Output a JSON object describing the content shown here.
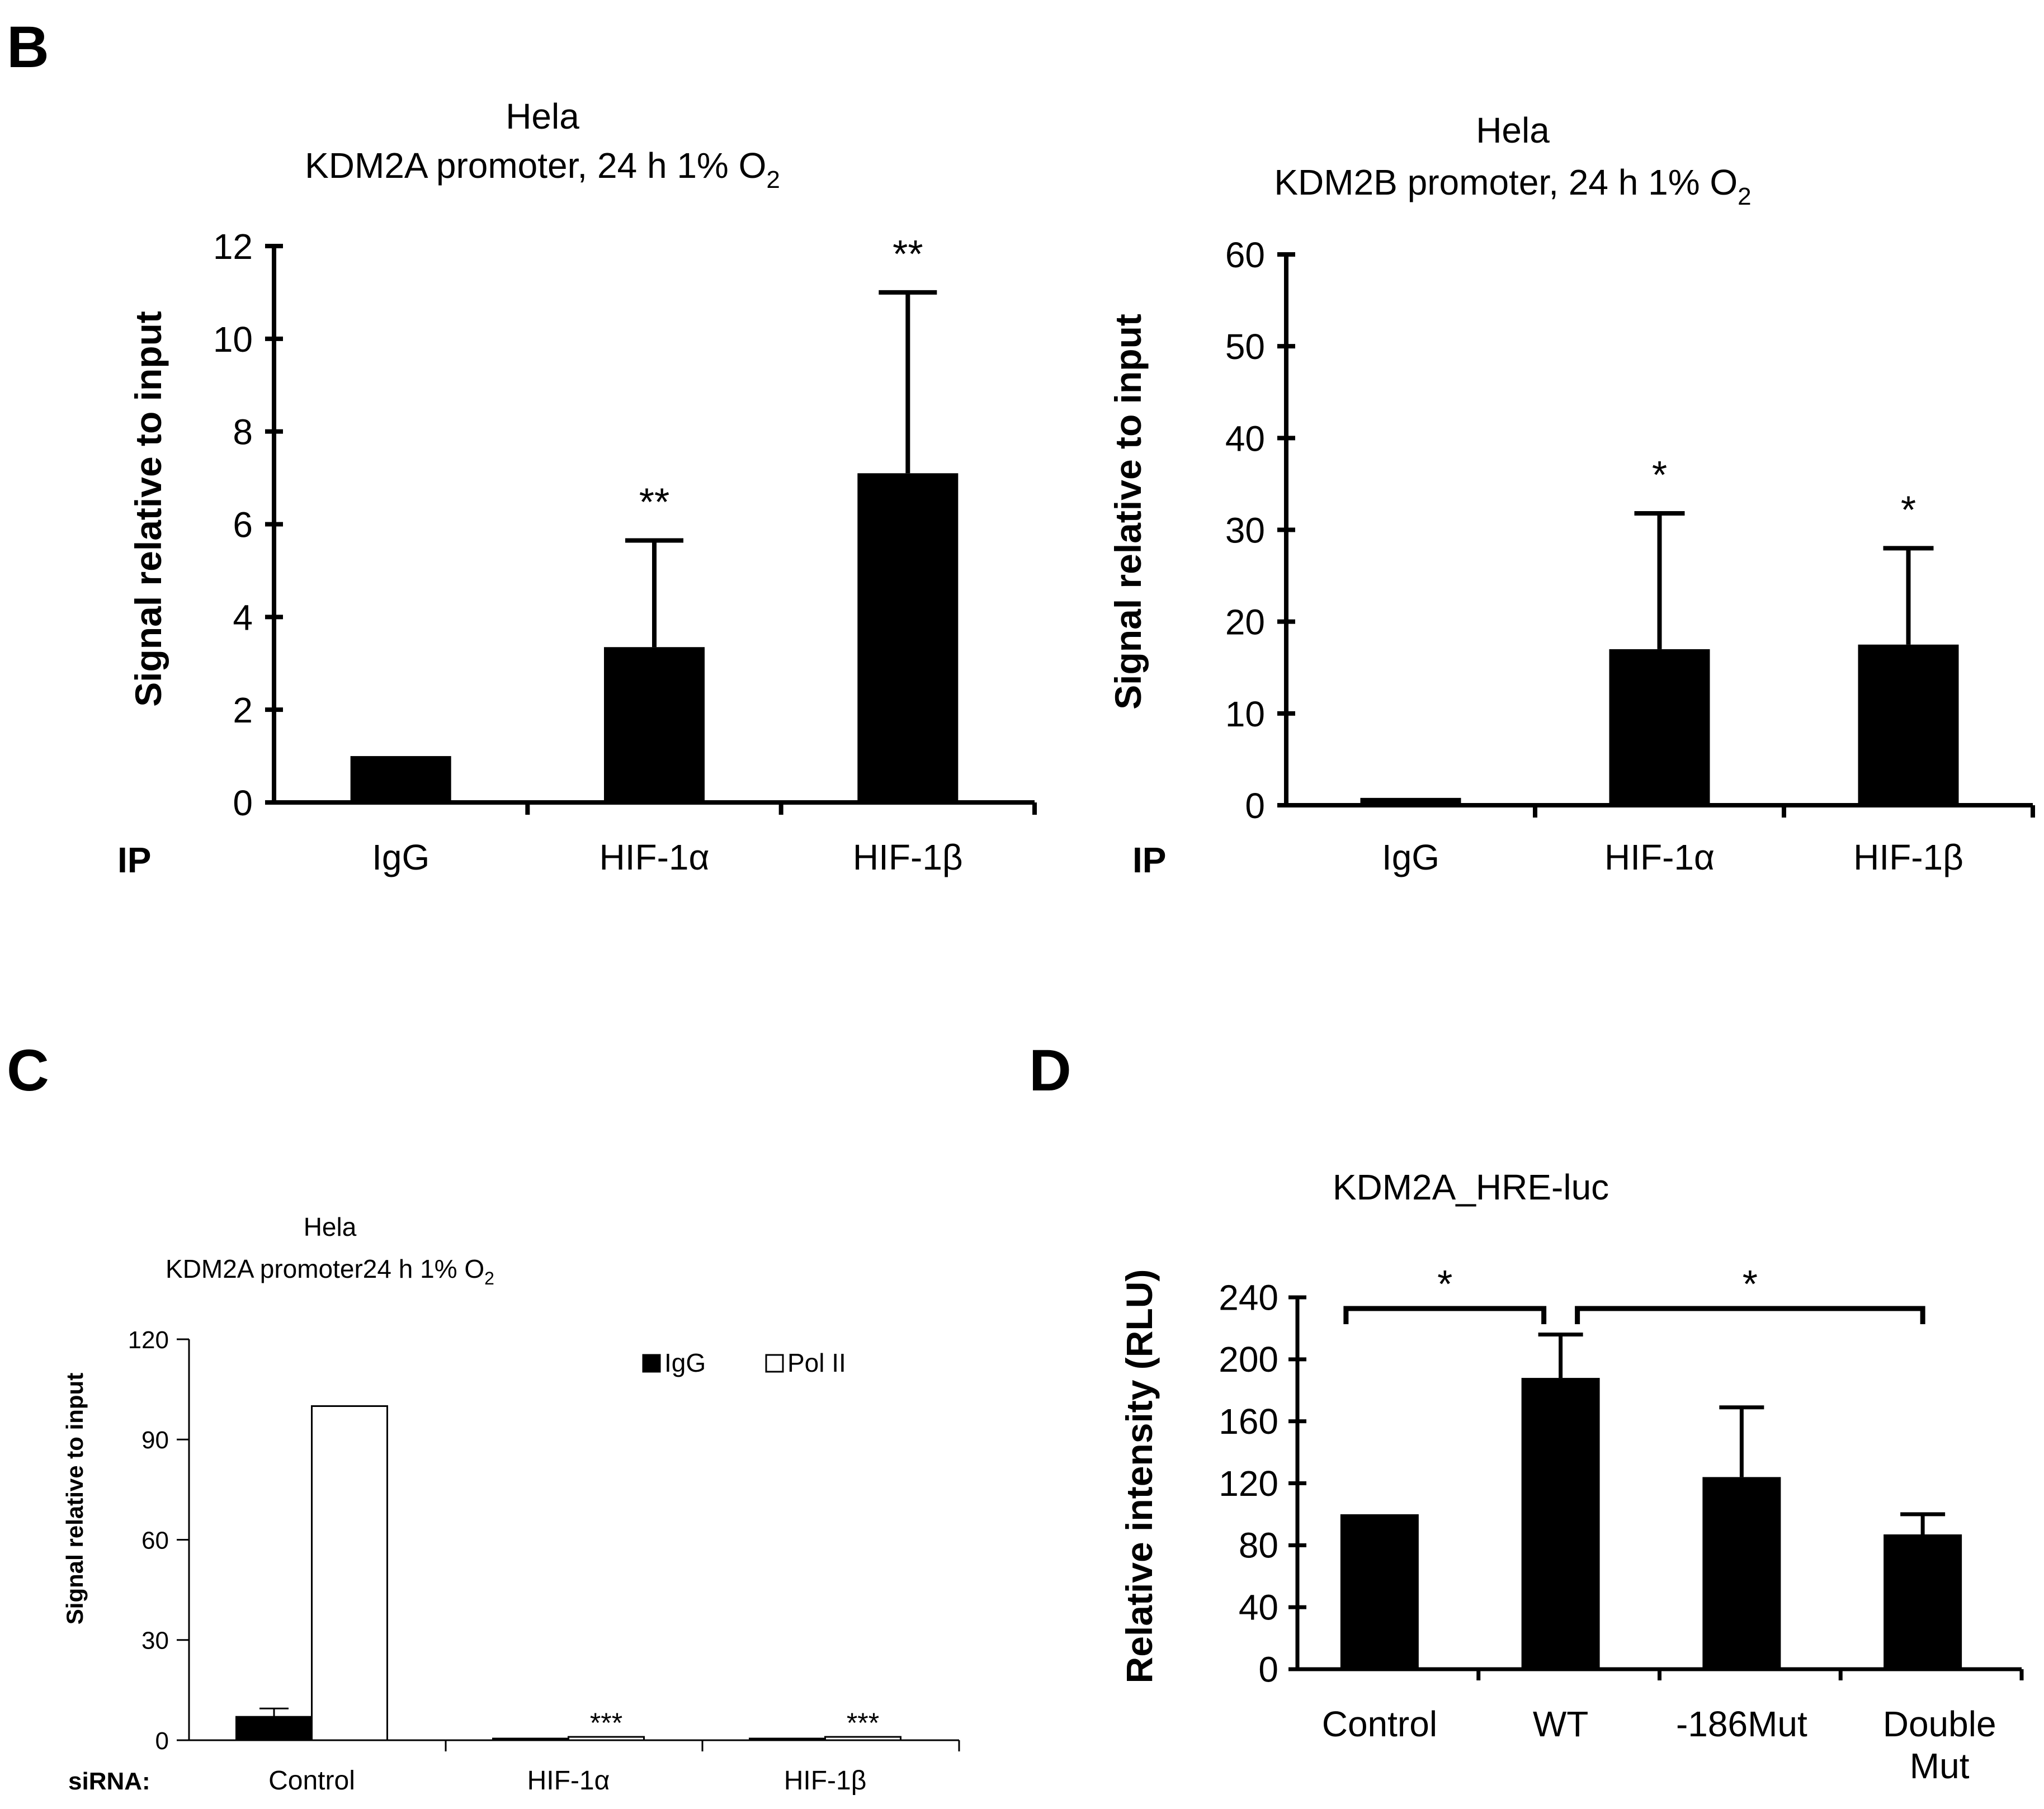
{
  "panels": {
    "B": "B",
    "C": "C",
    "D": "D"
  },
  "chart_data": [
    {
      "id": "B-left",
      "type": "bar",
      "title_line1": "Hela",
      "title_line2": "KDM2A promoter, 24 h 1% O",
      "title_sub": "2",
      "ylabel": "Signal relative to input",
      "row_label": "IP",
      "ylim": [
        0,
        12
      ],
      "yticks": [
        0,
        2,
        4,
        6,
        8,
        10,
        12
      ],
      "categories": [
        "IgG",
        "HIF-1α",
        "HIF-1β"
      ],
      "values": [
        1.0,
        3.35,
        7.1
      ],
      "errors": [
        0,
        2.3,
        3.9
      ],
      "significance": [
        "",
        "**",
        "**"
      ]
    },
    {
      "id": "B-right",
      "type": "bar",
      "title_line1": "Hela",
      "title_line2": "KDM2B promoter, 24 h 1% O",
      "title_sub": "2",
      "ylabel": "Signal relative to input",
      "row_label": "IP",
      "ylim": [
        0,
        60
      ],
      "yticks": [
        0,
        10,
        20,
        30,
        40,
        50,
        60
      ],
      "categories": [
        "IgG",
        "HIF-1α",
        "HIF-1β"
      ],
      "values": [
        0.8,
        17.0,
        17.5
      ],
      "errors": [
        0,
        14.8,
        10.5
      ],
      "significance": [
        "",
        "*",
        "*"
      ]
    },
    {
      "id": "C",
      "type": "bar",
      "title_line1": "Hela",
      "title_line2": "KDM2A promoter24 h 1% O",
      "title_sub": "2",
      "ylabel": "Signal relative to input",
      "row_label": "siRNA:",
      "ylim": [
        0,
        120
      ],
      "yticks": [
        0,
        30,
        60,
        90,
        120
      ],
      "categories": [
        "Control",
        "HIF-1α",
        "HIF-1β"
      ],
      "series": [
        {
          "name": "IgG",
          "values": [
            7.0,
            0.5,
            0.5
          ],
          "errors": [
            2.5,
            0,
            0
          ],
          "fill": "#000000"
        },
        {
          "name": "Pol II",
          "values": [
            100,
            1.0,
            1.0
          ],
          "errors": [
            0,
            0,
            0
          ],
          "fill": "#ffffff"
        }
      ],
      "significance": [
        "",
        "***",
        "***"
      ]
    },
    {
      "id": "D",
      "type": "bar",
      "title": "KDM2A_HRE-luc",
      "ylabel": "Relative intensity (RLU)",
      "ylim": [
        0,
        240
      ],
      "yticks": [
        0,
        40,
        80,
        120,
        160,
        200,
        240
      ],
      "categories": [
        "Control",
        "WT",
        "-186Mut",
        "Double Mut"
      ],
      "values": [
        100,
        188,
        124,
        87
      ],
      "errors": [
        0,
        28,
        45,
        13
      ],
      "brackets": [
        {
          "from": 0,
          "to": 1,
          "label": "*"
        },
        {
          "from": 1,
          "to": 3,
          "label": "*"
        }
      ]
    }
  ]
}
